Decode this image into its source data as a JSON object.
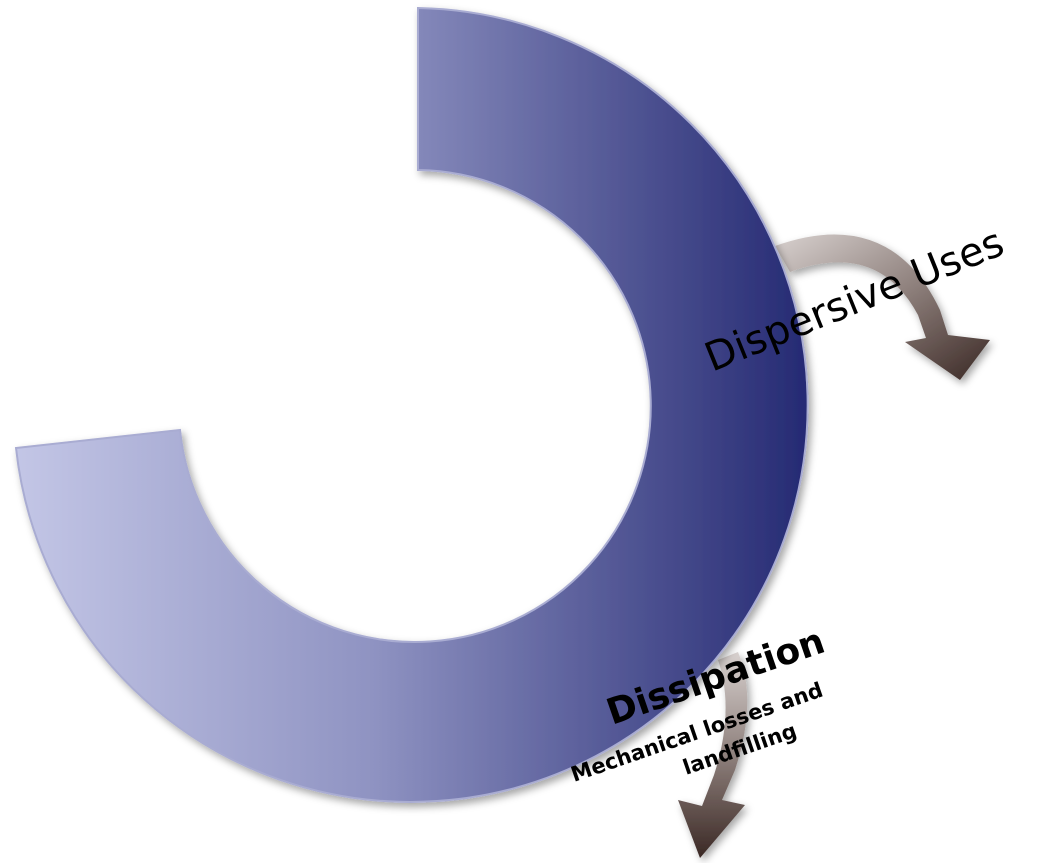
{
  "diagram": {
    "ring_color_light": "#c3c6e6",
    "ring_color_dark": "#252a73",
    "arrow_color_light": "#d8d1cf",
    "arrow_color_dark": "#3a2824",
    "dispersive": {
      "label": "Dispersive Uses"
    },
    "dissipation": {
      "title": "Dissipation",
      "line1": "Mechanical losses and",
      "line2": "landfilling"
    }
  }
}
